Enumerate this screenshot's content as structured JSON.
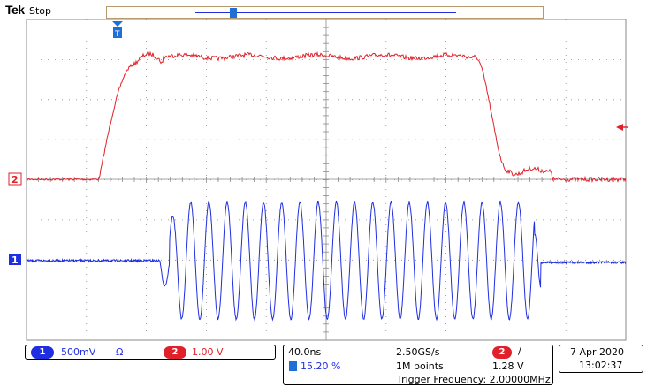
{
  "header": {
    "brand": "Tek",
    "status": "Stop"
  },
  "colors": {
    "ch1": "#1f2ee0",
    "ch2": "#e0202a",
    "graticule": "#8a8a8a",
    "accent": "#b49a6e",
    "trigger_marker": "#1f6fd6"
  },
  "markers": {
    "ch1_marker": "1",
    "ch2_marker": "2",
    "trigger_icon": "trigger-position-icon",
    "trigger_level_icon": "trigger-level-arrow-icon"
  },
  "channel_bar": {
    "ch1_num": "1",
    "ch1_scale": "500mV",
    "ch1_coupling": "Ω",
    "ch2_num": "2",
    "ch2_scale": "1.00 V"
  },
  "acquisition": {
    "timebase": "40.0ns",
    "sample_rate": "2.50GS/s",
    "trigger_pos": "15.20 %",
    "record_length": "1M points",
    "trig_channel": "2",
    "trig_slope": "/",
    "trig_level": "1.28 V",
    "trigger_frequency": "Trigger Frequency: 2.00000MHz"
  },
  "clock": {
    "date": "7 Apr  2020",
    "time": "13:02:37"
  }
}
